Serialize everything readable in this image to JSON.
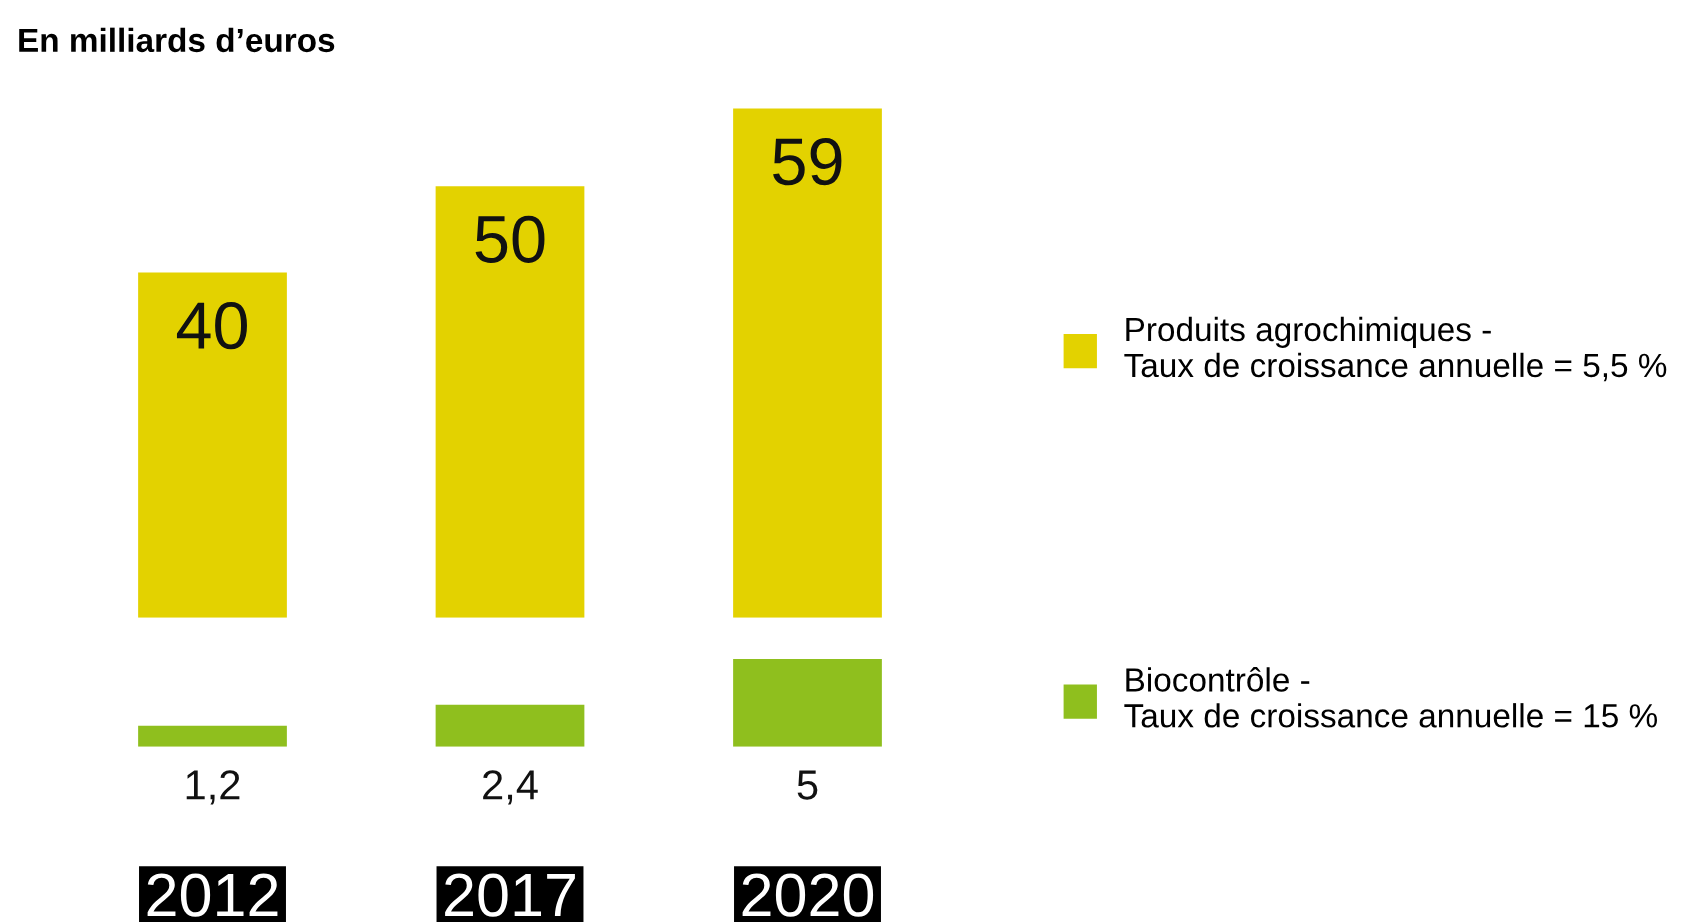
{
  "chart_data": [
    {
      "type": "bar",
      "title": "En milliards d’euros",
      "categories": [
        "2012",
        "2017",
        "2020"
      ],
      "series": [
        {
          "name": "Produits agrochimiques -\nTaux de croissance annuelle = 5,5 %",
          "color": "#e3d200",
          "values": [
            40,
            50,
            59
          ]
        }
      ],
      "data_labels": true,
      "legend": "right",
      "tick_labels": false
    },
    {
      "type": "bar",
      "categories": [
        "2012",
        "2017",
        "2020"
      ],
      "series": [
        {
          "name": "Biocontrôle -\nTaux de croissance annuelle = 15 %",
          "color": "#8fbf1e",
          "values": [
            1.2,
            2.4,
            5
          ],
          "value_labels": [
            "1,2",
            "2,4",
            "5"
          ]
        }
      ],
      "legend": "right",
      "tick_labels": "x"
    }
  ]
}
